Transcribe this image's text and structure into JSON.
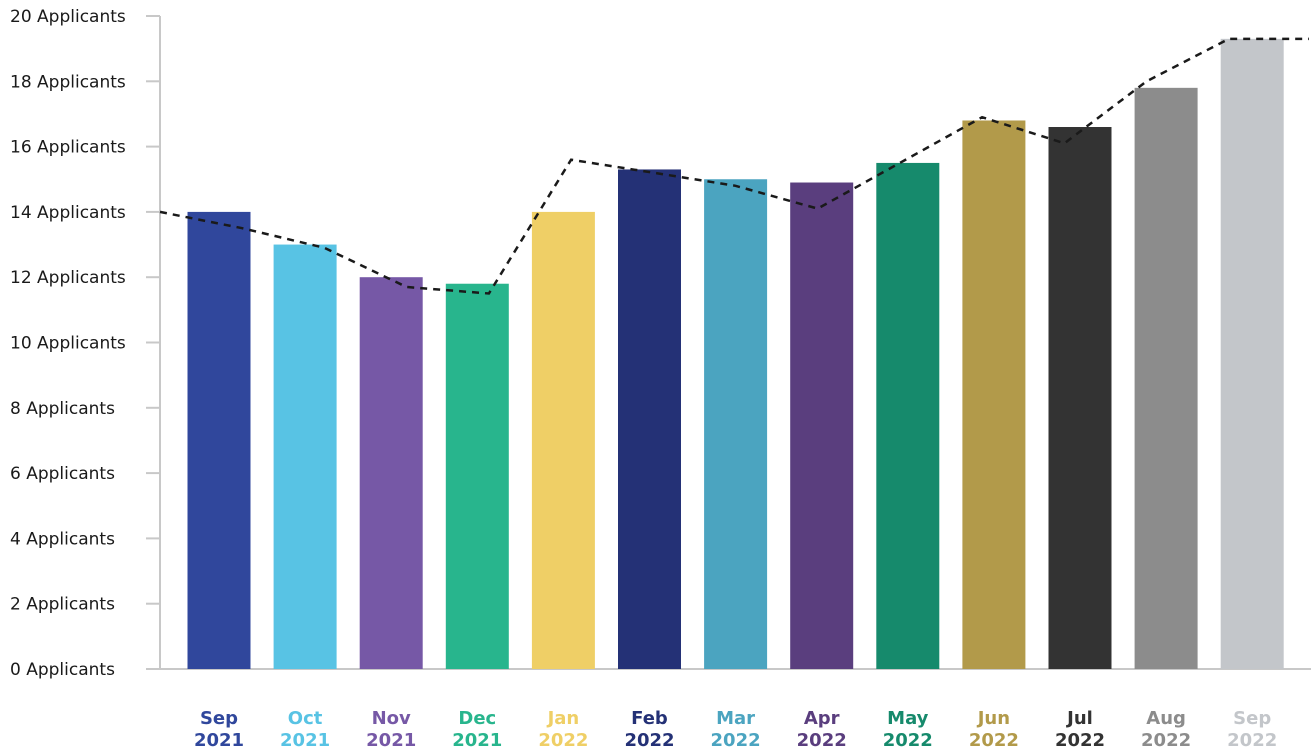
{
  "chart_data": {
    "type": "bar",
    "title": "",
    "xlabel": "",
    "ylabel": "",
    "ylim": [
      0,
      20
    ],
    "y_tick_values": [
      0,
      2,
      4,
      6,
      8,
      10,
      12,
      14,
      16,
      18,
      20
    ],
    "y_tick_suffix": "Applicants",
    "y_tick_labels": [
      "0 Applicants",
      "2 Applicants",
      "4 Applicants",
      "6 Applicants",
      "8 Applicants",
      "10 Applicants",
      "12 Applicants",
      "14 Applicants",
      "16 Applicants",
      "18 Applicants",
      "20 Applicants"
    ],
    "grid": false,
    "legend": "none",
    "categories": [
      {
        "month": "Sep",
        "year": "2021"
      },
      {
        "month": "Oct",
        "year": "2021"
      },
      {
        "month": "Nov",
        "year": "2021"
      },
      {
        "month": "Dec",
        "year": "2021"
      },
      {
        "month": "Jan",
        "year": "2022"
      },
      {
        "month": "Feb",
        "year": "2022"
      },
      {
        "month": "Mar",
        "year": "2022"
      },
      {
        "month": "Apr",
        "year": "2022"
      },
      {
        "month": "May",
        "year": "2022"
      },
      {
        "month": "Jun",
        "year": "2022"
      },
      {
        "month": "Jul",
        "year": "2022"
      },
      {
        "month": "Aug",
        "year": "2022"
      },
      {
        "month": "Sep",
        "year": "2022"
      }
    ],
    "values": [
      14.0,
      13.0,
      12.0,
      11.8,
      14.0,
      15.3,
      15.0,
      14.9,
      15.5,
      16.8,
      16.6,
      17.8,
      19.3
    ],
    "bar_colors": [
      "#30479c",
      "#58c3e4",
      "#7658a6",
      "#28b58d",
      "#efcf66",
      "#243176",
      "#4ba4c0",
      "#5a3e7e",
      "#168a6c",
      "#b29a4a",
      "#333333",
      "#8c8c8c",
      "#c3c6ca"
    ],
    "trend_line": {
      "style": "dashed",
      "color": "#1a1a1a",
      "values": [
        14.0,
        13.5,
        12.9,
        11.7,
        11.5,
        15.6,
        15.2,
        14.8,
        14.1,
        15.5,
        16.9,
        16.1,
        18.0,
        19.3,
        19.3
      ]
    }
  }
}
